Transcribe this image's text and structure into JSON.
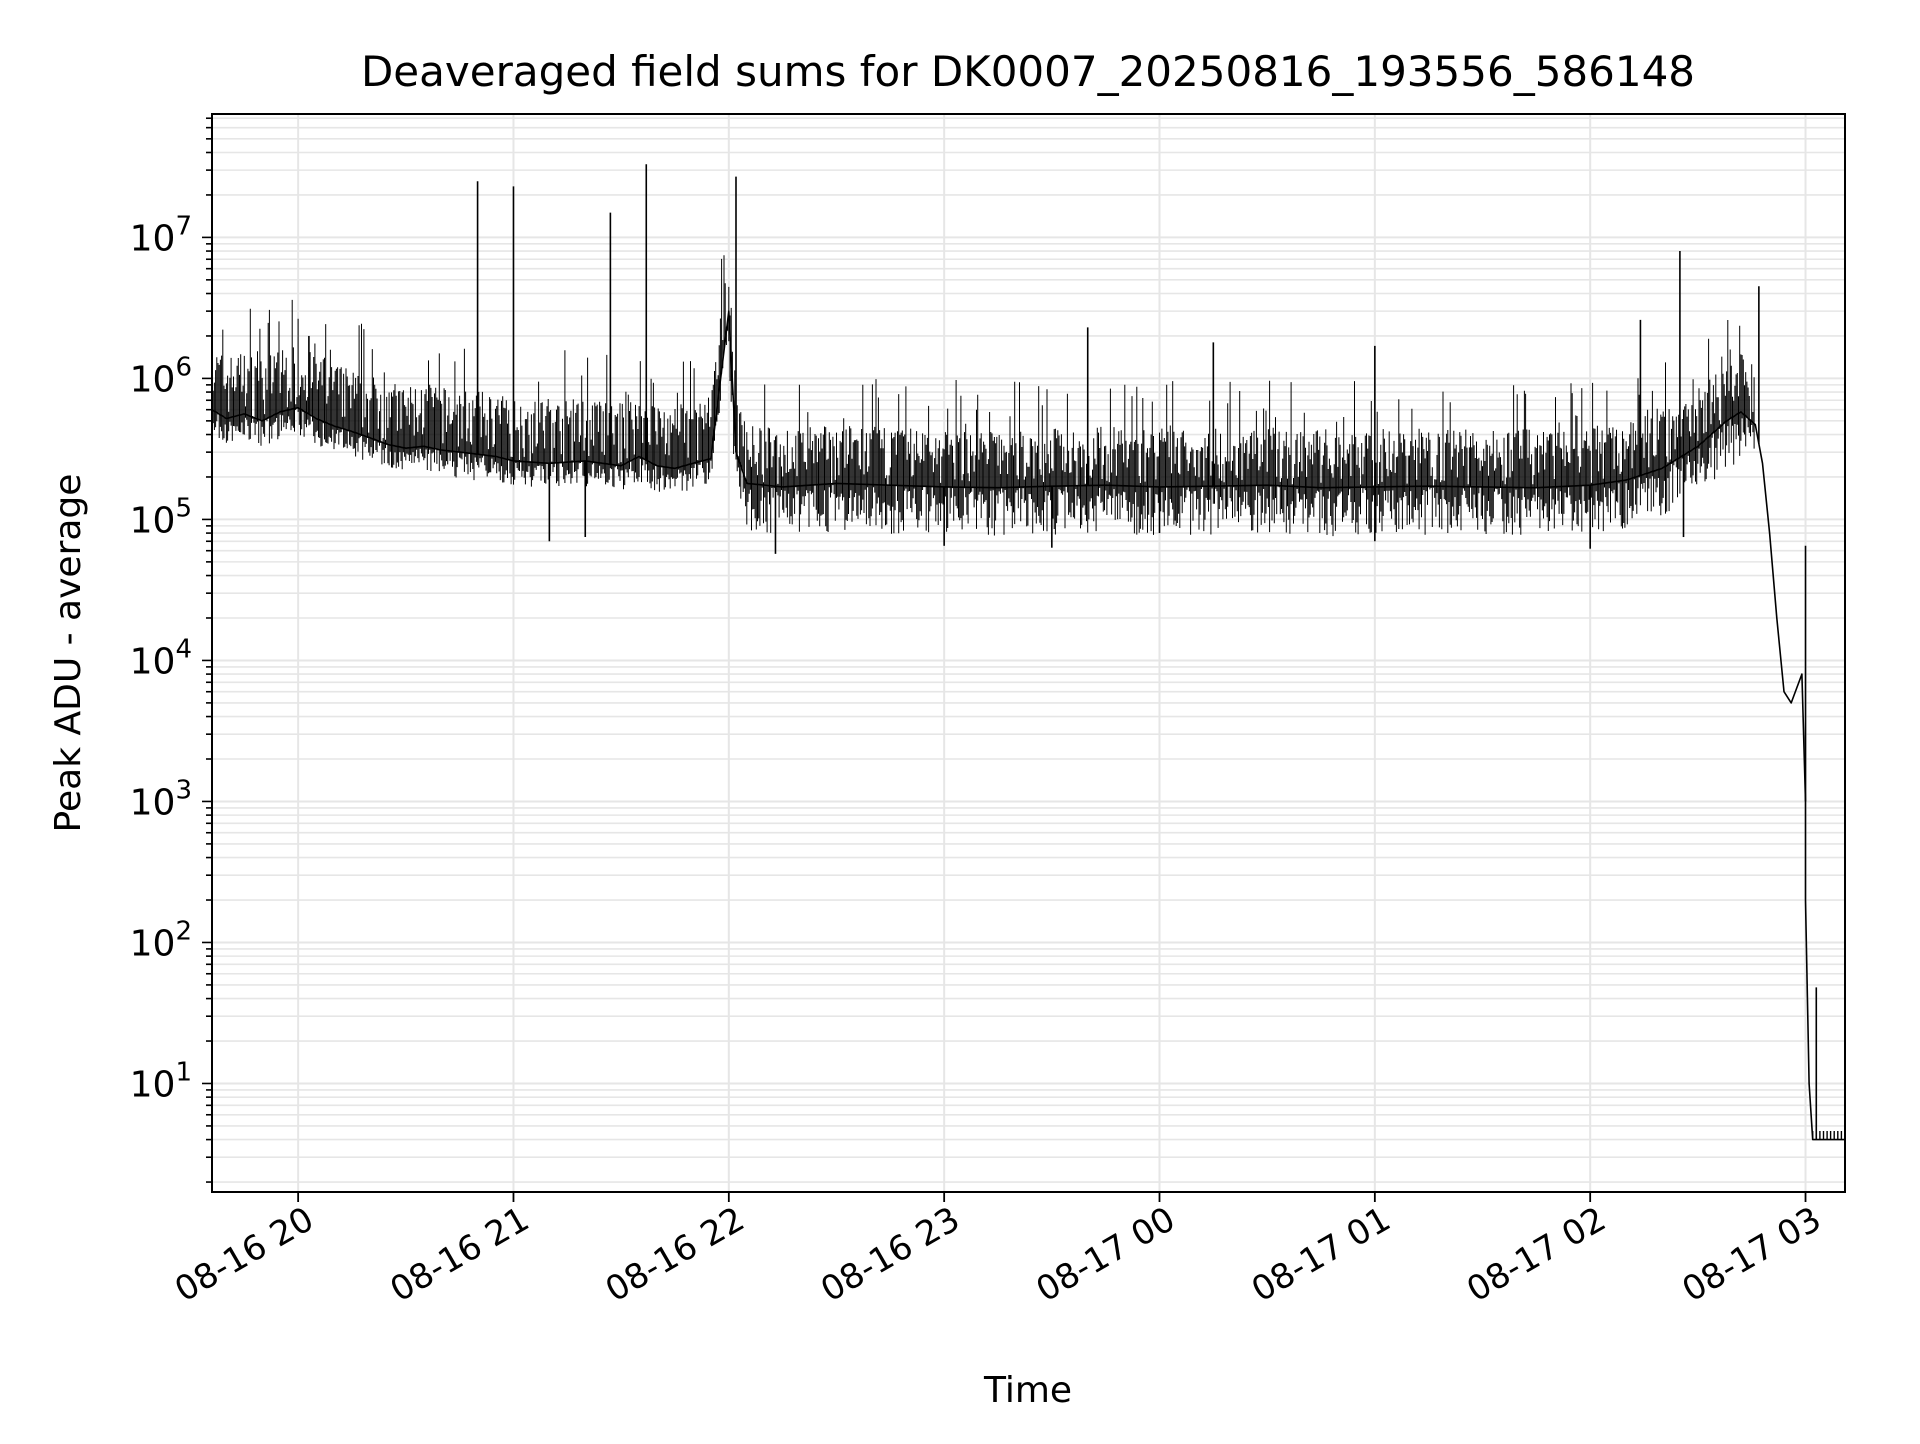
{
  "chart_data": {
    "type": "line",
    "title": "Deaveraged field sums for DK0007_20250816_193556_586148",
    "xlabel": "Time",
    "ylabel": "Peak ADU - average",
    "yscale": "log",
    "grid": true,
    "grid_minor": true,
    "legend": "none",
    "line_color": "#000000",
    "grid_color": "#e6e6e6",
    "xlim": [
      "2025-08-16 19:36",
      "2025-08-17 03:11"
    ],
    "ylim": [
      1.7,
      75000000
    ],
    "x_ticks": [
      {
        "t": "2025-08-16 20:00",
        "label": "08-16 20"
      },
      {
        "t": "2025-08-16 21:00",
        "label": "08-16 21"
      },
      {
        "t": "2025-08-16 22:00",
        "label": "08-16 22"
      },
      {
        "t": "2025-08-16 23:00",
        "label": "08-16 23"
      },
      {
        "t": "2025-08-17 00:00",
        "label": "08-17 00"
      },
      {
        "t": "2025-08-17 01:00",
        "label": "08-17 01"
      },
      {
        "t": "2025-08-17 02:00",
        "label": "08-17 02"
      },
      {
        "t": "2025-08-17 03:00",
        "label": "08-17 03"
      }
    ],
    "y_ticks": [
      {
        "v": 10,
        "base": "10",
        "exp": "1"
      },
      {
        "v": 100,
        "base": "10",
        "exp": "2"
      },
      {
        "v": 1000,
        "base": "10",
        "exp": "3"
      },
      {
        "v": 10000,
        "base": "10",
        "exp": "4"
      },
      {
        "v": 100000,
        "base": "10",
        "exp": "5"
      },
      {
        "v": 1000000,
        "base": "10",
        "exp": "6"
      },
      {
        "v": 10000000,
        "base": "10",
        "exp": "7"
      }
    ],
    "series": [
      {
        "points": [
          [
            "2025-08-16 19:36",
            600000
          ],
          [
            "2025-08-16 19:40",
            520000
          ],
          [
            "2025-08-16 19:45",
            560000
          ],
          [
            "2025-08-16 19:50",
            500000
          ],
          [
            "2025-08-16 19:55",
            580000
          ],
          [
            "2025-08-16 20:00",
            620000
          ],
          [
            "2025-08-16 20:05",
            520000
          ],
          [
            "2025-08-16 20:10",
            460000
          ],
          [
            "2025-08-16 20:15",
            420000
          ],
          [
            "2025-08-16 20:20",
            380000
          ],
          [
            "2025-08-16 20:25",
            340000
          ],
          [
            "2025-08-16 20:30",
            320000
          ],
          [
            "2025-08-16 20:35",
            330000
          ],
          [
            "2025-08-16 20:40",
            310000
          ],
          [
            "2025-08-16 20:45",
            300000
          ],
          [
            "2025-08-16 20:50",
            290000
          ],
          [
            "2025-08-16 20:55",
            280000
          ],
          [
            "2025-08-16 21:00",
            260000
          ],
          [
            "2025-08-16 21:10",
            250000
          ],
          [
            "2025-08-16 21:20",
            260000
          ],
          [
            "2025-08-16 21:30",
            240000
          ],
          [
            "2025-08-16 21:35",
            280000
          ],
          [
            "2025-08-16 21:40",
            240000
          ],
          [
            "2025-08-16 21:45",
            230000
          ],
          [
            "2025-08-16 21:50",
            250000
          ],
          [
            "2025-08-16 21:55",
            270000
          ],
          [
            "2025-08-16 22:00",
            3000000
          ],
          [
            "2025-08-16 22:02",
            300000
          ],
          [
            "2025-08-16 22:05",
            180000
          ],
          [
            "2025-08-16 22:15",
            170000
          ],
          [
            "2025-08-16 22:30",
            180000
          ],
          [
            "2025-08-16 22:45",
            175000
          ],
          [
            "2025-08-16 23:00",
            170000
          ],
          [
            "2025-08-16 23:15",
            168000
          ],
          [
            "2025-08-16 23:30",
            172000
          ],
          [
            "2025-08-16 23:45",
            175000
          ],
          [
            "2025-08-17 00:00",
            170000
          ],
          [
            "2025-08-17 00:15",
            172000
          ],
          [
            "2025-08-17 00:30",
            175000
          ],
          [
            "2025-08-17 00:45",
            168000
          ],
          [
            "2025-08-17 01:00",
            170000
          ],
          [
            "2025-08-17 01:15",
            172000
          ],
          [
            "2025-08-17 01:30",
            170000
          ],
          [
            "2025-08-17 01:45",
            168000
          ],
          [
            "2025-08-17 02:00",
            175000
          ],
          [
            "2025-08-17 02:10",
            190000
          ],
          [
            "2025-08-17 02:20",
            230000
          ],
          [
            "2025-08-17 02:30",
            330000
          ],
          [
            "2025-08-17 02:38",
            500000
          ],
          [
            "2025-08-17 02:42",
            580000
          ],
          [
            "2025-08-17 02:46",
            470000
          ],
          [
            "2025-08-17 02:48",
            250000
          ],
          [
            "2025-08-17 02:50",
            80000
          ],
          [
            "2025-08-17 02:52",
            20000
          ],
          [
            "2025-08-17 02:54",
            6000
          ],
          [
            "2025-08-17 02:56",
            5000
          ],
          [
            "2025-08-17 02:59",
            8000
          ],
          [
            "2025-08-17 03:00",
            1000
          ],
          [
            "2025-08-17 03:00",
            200
          ],
          [
            "2025-08-17 03:01",
            10
          ],
          [
            "2025-08-17 03:02",
            4
          ],
          [
            "2025-08-17 03:05",
            4
          ],
          [
            "2025-08-17 03:11",
            4
          ]
        ],
        "spikes": [
          [
            "2025-08-16 20:03",
            2000000
          ],
          [
            "2025-08-16 20:50",
            25000000
          ],
          [
            "2025-08-16 21:00",
            23000000
          ],
          [
            "2025-08-16 21:27",
            15000000
          ],
          [
            "2025-08-16 21:37",
            33000000
          ],
          [
            "2025-08-16 22:02",
            27000000
          ],
          [
            "2025-08-16 23:40",
            2300000
          ],
          [
            "2025-08-17 00:15",
            1800000
          ],
          [
            "2025-08-17 01:00",
            1700000
          ],
          [
            "2025-08-17 02:25",
            8000000
          ],
          [
            "2025-08-17 02:14",
            2600000
          ],
          [
            "2025-08-17 02:47",
            4500000
          ],
          [
            "2025-08-17 03:00",
            65000
          ],
          [
            "2025-08-17 03:03",
            48
          ]
        ],
        "dips": [
          [
            "2025-08-16 21:10",
            70000
          ],
          [
            "2025-08-16 21:20",
            75000
          ],
          [
            "2025-08-16 22:13",
            57000
          ],
          [
            "2025-08-16 23:00",
            65000
          ],
          [
            "2025-08-16 23:30",
            63000
          ],
          [
            "2025-08-17 00:00",
            80000
          ],
          [
            "2025-08-17 01:00",
            70000
          ],
          [
            "2025-08-17 02:00",
            62000
          ],
          [
            "2025-08-17 02:26",
            75000
          ]
        ]
      }
    ]
  }
}
